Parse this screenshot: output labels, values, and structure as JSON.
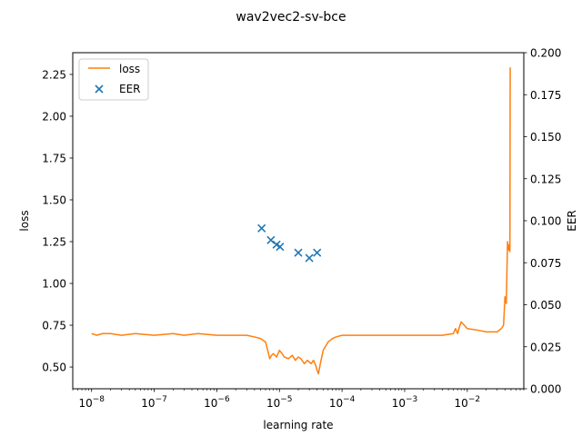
{
  "chart_data": {
    "type": "line",
    "title": "wav2vec2-sv-bce",
    "xlabel": "learning rate",
    "ylabel": "loss",
    "y2label": "EER",
    "xscale": "log",
    "xlim": [
      5e-09,
      0.08
    ],
    "ylim": [
      0.37,
      2.38
    ],
    "y2lim": [
      0.0,
      0.2
    ],
    "x_ticks": [
      1e-08,
      1e-07,
      1e-06,
      1e-05,
      0.0001,
      0.001,
      0.01
    ],
    "x_tick_labels": [
      {
        "base": "10",
        "exp": "−8"
      },
      {
        "base": "10",
        "exp": "−7"
      },
      {
        "base": "10",
        "exp": "−6"
      },
      {
        "base": "10",
        "exp": "−5"
      },
      {
        "base": "10",
        "exp": "−4"
      },
      {
        "base": "10",
        "exp": "−3"
      },
      {
        "base": "10",
        "exp": "−2"
      }
    ],
    "y_ticks": [
      0.5,
      0.75,
      1.0,
      1.25,
      1.5,
      1.75,
      2.0,
      2.25
    ],
    "y_tick_labels": [
      "0.50",
      "0.75",
      "1.00",
      "1.25",
      "1.50",
      "1.75",
      "2.00",
      "2.25"
    ],
    "y2_ticks": [
      0.0,
      0.025,
      0.05,
      0.075,
      0.1,
      0.125,
      0.15,
      0.175,
      0.2
    ],
    "y2_tick_labels": [
      "0.000",
      "0.025",
      "0.050",
      "0.075",
      "0.100",
      "0.125",
      "0.150",
      "0.175",
      "0.200"
    ],
    "legend": {
      "position": "top-left",
      "entries": [
        "loss",
        "EER"
      ]
    },
    "series": [
      {
        "name": "loss",
        "kind": "line",
        "axis": "left",
        "color": "#ff7f0e",
        "x": [
          1e-08,
          1.2e-08,
          1.5e-08,
          2e-08,
          3e-08,
          5e-08,
          1e-07,
          2e-07,
          3e-07,
          5e-07,
          1e-06,
          2e-06,
          3e-06,
          4e-06,
          5e-06,
          6e-06,
          6.5e-06,
          7e-06,
          7.5e-06,
          8e-06,
          9e-06,
          1e-05,
          1.1e-05,
          1.2e-05,
          1.4e-05,
          1.6e-05,
          1.8e-05,
          2e-05,
          2.2e-05,
          2.5e-05,
          2.8e-05,
          3e-05,
          3.2e-05,
          3.5e-05,
          3.8e-05,
          4e-05,
          4.2e-05,
          4.5e-05,
          5e-05,
          6e-05,
          7e-05,
          8e-05,
          0.0001,
          0.00015,
          0.0002,
          0.0005,
          0.001,
          0.002,
          0.004,
          0.006,
          0.0065,
          0.007,
          0.0075,
          0.008,
          0.01,
          0.015,
          0.02,
          0.03,
          0.035,
          0.038,
          0.04,
          0.042,
          0.044,
          0.046,
          0.047,
          0.048,
          0.0485,
          0.049
        ],
        "y": [
          0.7,
          0.69,
          0.7,
          0.7,
          0.69,
          0.7,
          0.69,
          0.7,
          0.69,
          0.7,
          0.69,
          0.69,
          0.69,
          0.68,
          0.67,
          0.65,
          0.6,
          0.55,
          0.57,
          0.58,
          0.56,
          0.6,
          0.58,
          0.56,
          0.55,
          0.57,
          0.54,
          0.56,
          0.55,
          0.52,
          0.54,
          0.53,
          0.52,
          0.54,
          0.51,
          0.48,
          0.46,
          0.52,
          0.6,
          0.65,
          0.67,
          0.68,
          0.69,
          0.69,
          0.69,
          0.69,
          0.69,
          0.69,
          0.69,
          0.7,
          0.73,
          0.7,
          0.74,
          0.77,
          0.73,
          0.72,
          0.71,
          0.71,
          0.73,
          0.75,
          0.92,
          0.88,
          1.25,
          1.2,
          1.23,
          1.19,
          2.29,
          2.29
        ]
      },
      {
        "name": "EER",
        "kind": "scatter",
        "axis": "right",
        "color": "#1f77b4",
        "marker": "x",
        "x": [
          5.2e-06,
          7.3e-06,
          9e-06,
          1.02e-05,
          2e-05,
          3e-05,
          4e-05
        ],
        "y": [
          0.0955,
          0.0885,
          0.0858,
          0.0845,
          0.081,
          0.0778,
          0.081
        ]
      }
    ]
  }
}
